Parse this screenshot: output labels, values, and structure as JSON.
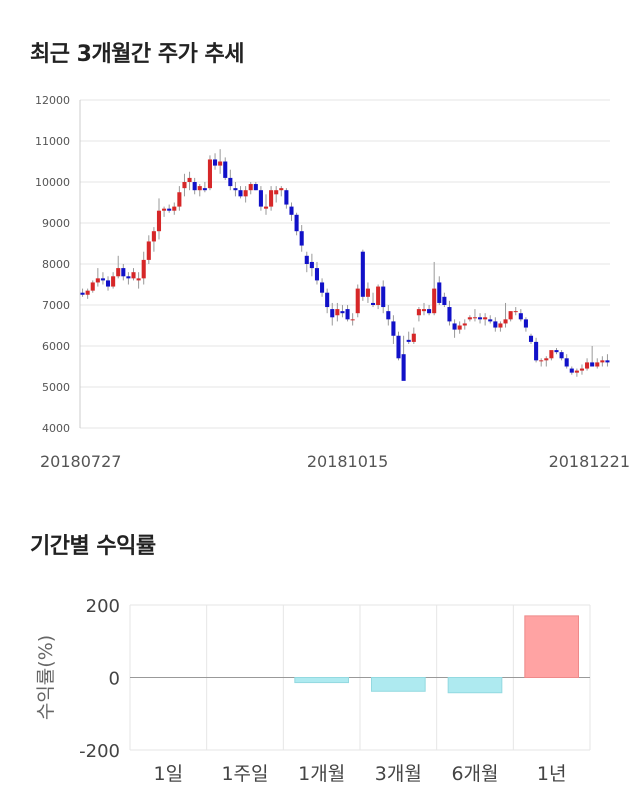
{
  "sections": {
    "price_title": "최근 3개월간 주가 추세",
    "returns_title": "기간별 수익률"
  },
  "colors": {
    "up": "#d62728",
    "down": "#1111c8",
    "grid": "#e6e6e6",
    "bar_pos": "#ffa3a3",
    "bar_neg": "#aeeaf0"
  },
  "chart_data": [
    {
      "type": "candlestick",
      "title": "",
      "ylim": [
        4000,
        12000
      ],
      "yticks": [
        "4000",
        "5000",
        "6000",
        "7000",
        "8000",
        "9000",
        "10000",
        "11000",
        "12000"
      ],
      "x_labels": [
        {
          "index": 0,
          "label": "20180727"
        },
        {
          "index": 52,
          "label": "20181015"
        },
        {
          "index": 103,
          "label": "20181221"
        }
      ],
      "ohlc": [
        [
          7300,
          7400,
          7200,
          7250
        ],
        [
          7250,
          7400,
          7150,
          7350
        ],
        [
          7350,
          7600,
          7300,
          7550
        ],
        [
          7550,
          7900,
          7450,
          7650
        ],
        [
          7650,
          7800,
          7500,
          7600
        ],
        [
          7600,
          7700,
          7350,
          7450
        ],
        [
          7450,
          7800,
          7400,
          7700
        ],
        [
          7700,
          8200,
          7650,
          7900
        ],
        [
          7900,
          8000,
          7600,
          7700
        ],
        [
          7700,
          7800,
          7500,
          7650
        ],
        [
          7650,
          7900,
          7600,
          7800
        ],
        [
          7600,
          7800,
          7400,
          7650
        ],
        [
          7650,
          8300,
          7500,
          8100
        ],
        [
          8100,
          8700,
          8000,
          8550
        ],
        [
          8550,
          8900,
          8300,
          8800
        ],
        [
          8800,
          9600,
          8600,
          9300
        ],
        [
          9300,
          9400,
          9150,
          9350
        ],
        [
          9350,
          9450,
          9250,
          9300
        ],
        [
          9300,
          9500,
          9200,
          9400
        ],
        [
          9400,
          9900,
          9300,
          9750
        ],
        [
          9850,
          10200,
          9650,
          10000
        ],
        [
          10000,
          10250,
          9800,
          10100
        ],
        [
          10000,
          10100,
          9700,
          9800
        ],
        [
          9800,
          9950,
          9650,
          9900
        ],
        [
          9850,
          10000,
          9750,
          9800
        ],
        [
          9850,
          10650,
          9800,
          10550
        ],
        [
          10550,
          10700,
          10300,
          10400
        ],
        [
          10400,
          10800,
          10200,
          10500
        ],
        [
          10500,
          10600,
          10050,
          10100
        ],
        [
          10100,
          10300,
          9800,
          9900
        ],
        [
          9850,
          10000,
          9650,
          9800
        ],
        [
          9800,
          9900,
          9600,
          9650
        ],
        [
          9650,
          9900,
          9500,
          9800
        ],
        [
          9800,
          10000,
          9700,
          9950
        ],
        [
          9950,
          10000,
          9800,
          9800
        ],
        [
          9800,
          9900,
          9300,
          9400
        ],
        [
          9350,
          9700,
          9200,
          9400
        ],
        [
          9400,
          9900,
          9300,
          9800
        ],
        [
          9700,
          9900,
          9500,
          9800
        ],
        [
          9800,
          9900,
          9650,
          9850
        ],
        [
          9800,
          9850,
          9350,
          9450
        ],
        [
          9400,
          9500,
          9050,
          9200
        ],
        [
          9200,
          9250,
          8700,
          8800
        ],
        [
          8800,
          8950,
          8300,
          8450
        ],
        [
          8200,
          8300,
          7800,
          8000
        ],
        [
          8050,
          8250,
          7700,
          7900
        ],
        [
          7900,
          8050,
          7500,
          7600
        ],
        [
          7550,
          7650,
          7200,
          7300
        ],
        [
          7300,
          7400,
          6800,
          6950
        ],
        [
          6900,
          7050,
          6500,
          6700
        ],
        [
          6750,
          7050,
          6600,
          6900
        ],
        [
          6850,
          7000,
          6700,
          6800
        ],
        [
          6900,
          7000,
          6600,
          6650
        ],
        [
          6650,
          6800,
          6500,
          6650
        ],
        [
          6800,
          7500,
          6700,
          7400
        ],
        [
          8300,
          8350,
          7100,
          7200
        ],
        [
          7200,
          7550,
          7050,
          7400
        ],
        [
          7050,
          7300,
          6950,
          7000
        ],
        [
          7000,
          7500,
          6900,
          7450
        ],
        [
          7450,
          7600,
          6800,
          6950
        ],
        [
          6850,
          7000,
          6500,
          6650
        ],
        [
          6600,
          6750,
          6050,
          6250
        ],
        [
          6250,
          6350,
          5650,
          5700
        ],
        [
          5800,
          6250,
          5200,
          5150
        ],
        [
          6150,
          6350,
          6050,
          6100
        ],
        [
          6100,
          6450,
          6050,
          6300
        ],
        [
          6750,
          6950,
          6600,
          6900
        ],
        [
          6850,
          7050,
          6750,
          6900
        ],
        [
          6900,
          7000,
          6750,
          6800
        ],
        [
          6800,
          8050,
          6750,
          7400
        ],
        [
          7550,
          7700,
          7000,
          7050
        ],
        [
          7200,
          7300,
          6950,
          7000
        ],
        [
          6950,
          7100,
          6500,
          6600
        ],
        [
          6550,
          6650,
          6200,
          6400
        ],
        [
          6400,
          6600,
          6300,
          6500
        ],
        [
          6500,
          6650,
          6400,
          6550
        ],
        [
          6650,
          6750,
          6600,
          6700
        ],
        [
          6700,
          6900,
          6600,
          6700
        ],
        [
          6700,
          6800,
          6550,
          6650
        ],
        [
          6650,
          6800,
          6500,
          6700
        ],
        [
          6650,
          6750,
          6550,
          6600
        ],
        [
          6600,
          6700,
          6350,
          6450
        ],
        [
          6450,
          6600,
          6350,
          6550
        ],
        [
          6550,
          7050,
          6450,
          6650
        ],
        [
          6650,
          6850,
          6600,
          6850
        ],
        [
          6850,
          6950,
          6750,
          6850
        ],
        [
          6800,
          6900,
          6600,
          6650
        ],
        [
          6650,
          6700,
          6350,
          6450
        ],
        [
          6250,
          6300,
          6050,
          6100
        ],
        [
          6100,
          6200,
          5600,
          5650
        ],
        [
          5650,
          5700,
          5500,
          5650
        ],
        [
          5650,
          5750,
          5500,
          5700
        ],
        [
          5700,
          5850,
          5650,
          5900
        ],
        [
          5900,
          5950,
          5800,
          5850
        ],
        [
          5850,
          5900,
          5650,
          5700
        ],
        [
          5700,
          5800,
          5450,
          5500
        ],
        [
          5450,
          5500,
          5300,
          5350
        ],
        [
          5350,
          5450,
          5250,
          5400
        ],
        [
          5400,
          5550,
          5300,
          5450
        ],
        [
          5450,
          5700,
          5400,
          5600
        ],
        [
          5600,
          6000,
          5500,
          5500
        ],
        [
          5500,
          5700,
          5450,
          5600
        ],
        [
          5600,
          5750,
          5500,
          5650
        ],
        [
          5650,
          5800,
          5500,
          5600
        ]
      ]
    },
    {
      "type": "bar",
      "title": "",
      "ylabel": "수익률(%)",
      "ylim": [
        -200,
        200
      ],
      "yticks": [
        "-200",
        "0",
        "200"
      ],
      "categories": [
        "1일",
        "1주일",
        "1개월",
        "3개월",
        "6개월",
        "1년"
      ],
      "values": [
        0,
        0,
        -14,
        -38,
        -42,
        170
      ]
    }
  ]
}
